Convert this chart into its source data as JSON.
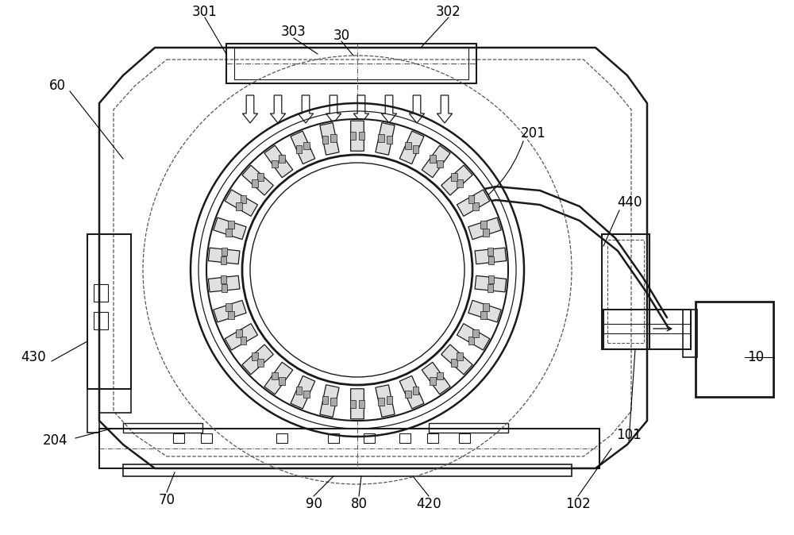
{
  "background_color": "#ffffff",
  "line_color": "#1a1a1a",
  "dashed_color": "#555555",
  "figsize": [
    10.0,
    6.74
  ],
  "dpi": 100
}
